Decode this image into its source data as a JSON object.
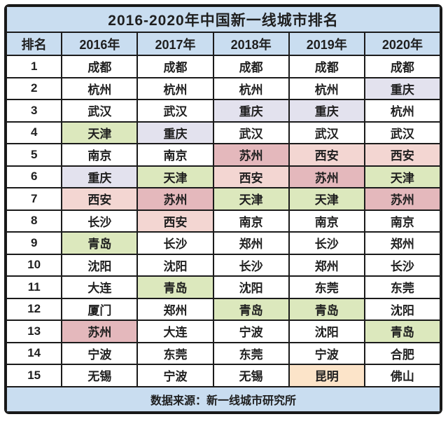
{
  "title": "2016-2020年中国新一线城市排名",
  "header": {
    "columns": [
      "排名",
      "2016年",
      "2017年",
      "2018年",
      "2019年",
      "2020年"
    ]
  },
  "rows": [
    {
      "rank": "1",
      "cells": [
        {
          "city": "成都",
          "highlight": ""
        },
        {
          "city": "成都",
          "highlight": ""
        },
        {
          "city": "成都",
          "highlight": ""
        },
        {
          "city": "成都",
          "highlight": ""
        },
        {
          "city": "成都",
          "highlight": ""
        }
      ]
    },
    {
      "rank": "2",
      "cells": [
        {
          "city": "杭州",
          "highlight": ""
        },
        {
          "city": "杭州",
          "highlight": ""
        },
        {
          "city": "杭州",
          "highlight": ""
        },
        {
          "city": "杭州",
          "highlight": ""
        },
        {
          "city": "重庆",
          "highlight": "lavender"
        }
      ]
    },
    {
      "rank": "3",
      "cells": [
        {
          "city": "武汉",
          "highlight": ""
        },
        {
          "city": "武汉",
          "highlight": ""
        },
        {
          "city": "重庆",
          "highlight": "lavender"
        },
        {
          "city": "重庆",
          "highlight": "lavender"
        },
        {
          "city": "杭州",
          "highlight": ""
        }
      ]
    },
    {
      "rank": "4",
      "cells": [
        {
          "city": "天津",
          "highlight": "green"
        },
        {
          "city": "重庆",
          "highlight": "lavender"
        },
        {
          "city": "武汉",
          "highlight": ""
        },
        {
          "city": "武汉",
          "highlight": ""
        },
        {
          "city": "武汉",
          "highlight": ""
        }
      ]
    },
    {
      "rank": "5",
      "cells": [
        {
          "city": "南京",
          "highlight": ""
        },
        {
          "city": "南京",
          "highlight": ""
        },
        {
          "city": "苏州",
          "highlight": "rose"
        },
        {
          "city": "西安",
          "highlight": "pink"
        },
        {
          "city": "西安",
          "highlight": "pink"
        }
      ]
    },
    {
      "rank": "6",
      "cells": [
        {
          "city": "重庆",
          "highlight": "lavender"
        },
        {
          "city": "天津",
          "highlight": "green"
        },
        {
          "city": "西安",
          "highlight": "pink"
        },
        {
          "city": "苏州",
          "highlight": "rose"
        },
        {
          "city": "天津",
          "highlight": "green"
        }
      ]
    },
    {
      "rank": "7",
      "cells": [
        {
          "city": "西安",
          "highlight": "pink"
        },
        {
          "city": "苏州",
          "highlight": "rose"
        },
        {
          "city": "天津",
          "highlight": "green"
        },
        {
          "city": "天津",
          "highlight": "green"
        },
        {
          "city": "苏州",
          "highlight": "rose"
        }
      ]
    },
    {
      "rank": "8",
      "cells": [
        {
          "city": "长沙",
          "highlight": ""
        },
        {
          "city": "西安",
          "highlight": "pink"
        },
        {
          "city": "南京",
          "highlight": ""
        },
        {
          "city": "南京",
          "highlight": ""
        },
        {
          "city": "南京",
          "highlight": ""
        }
      ]
    },
    {
      "rank": "9",
      "cells": [
        {
          "city": "青岛",
          "highlight": "green"
        },
        {
          "city": "长沙",
          "highlight": ""
        },
        {
          "city": "郑州",
          "highlight": ""
        },
        {
          "city": "长沙",
          "highlight": ""
        },
        {
          "city": "郑州",
          "highlight": ""
        }
      ]
    },
    {
      "rank": "10",
      "cells": [
        {
          "city": "沈阳",
          "highlight": ""
        },
        {
          "city": "沈阳",
          "highlight": ""
        },
        {
          "city": "长沙",
          "highlight": ""
        },
        {
          "city": "郑州",
          "highlight": ""
        },
        {
          "city": "长沙",
          "highlight": ""
        }
      ]
    },
    {
      "rank": "11",
      "cells": [
        {
          "city": "大连",
          "highlight": ""
        },
        {
          "city": "青岛",
          "highlight": "green"
        },
        {
          "city": "沈阳",
          "highlight": ""
        },
        {
          "city": "东莞",
          "highlight": ""
        },
        {
          "city": "东莞",
          "highlight": ""
        }
      ]
    },
    {
      "rank": "12",
      "cells": [
        {
          "city": "厦门",
          "highlight": ""
        },
        {
          "city": "郑州",
          "highlight": ""
        },
        {
          "city": "青岛",
          "highlight": "green"
        },
        {
          "city": "青岛",
          "highlight": "green"
        },
        {
          "city": "沈阳",
          "highlight": ""
        }
      ]
    },
    {
      "rank": "13",
      "cells": [
        {
          "city": "苏州",
          "highlight": "rose"
        },
        {
          "city": "大连",
          "highlight": ""
        },
        {
          "city": "宁波",
          "highlight": ""
        },
        {
          "city": "沈阳",
          "highlight": ""
        },
        {
          "city": "青岛",
          "highlight": "green"
        }
      ]
    },
    {
      "rank": "14",
      "cells": [
        {
          "city": "宁波",
          "highlight": ""
        },
        {
          "city": "东莞",
          "highlight": ""
        },
        {
          "city": "东莞",
          "highlight": ""
        },
        {
          "city": "宁波",
          "highlight": ""
        },
        {
          "city": "合肥",
          "highlight": ""
        }
      ]
    },
    {
      "rank": "15",
      "cells": [
        {
          "city": "无锡",
          "highlight": ""
        },
        {
          "city": "宁波",
          "highlight": ""
        },
        {
          "city": "无锡",
          "highlight": ""
        },
        {
          "city": "昆明",
          "highlight": "peach"
        },
        {
          "city": "佛山",
          "highlight": ""
        }
      ]
    }
  ],
  "footer": {
    "source_text": "数据来源：新一线城市研究所"
  },
  "colors": {
    "band_bg": "#c9ddf0",
    "border": "#1b1b1b",
    "text": "#1f1f1f",
    "highlights": {
      "lavender": "#e3e2ee",
      "green": "#dce8bd",
      "rose": "#e4b8bc",
      "pink": "#f3d6d2",
      "peach": "#fce4c9"
    }
  }
}
